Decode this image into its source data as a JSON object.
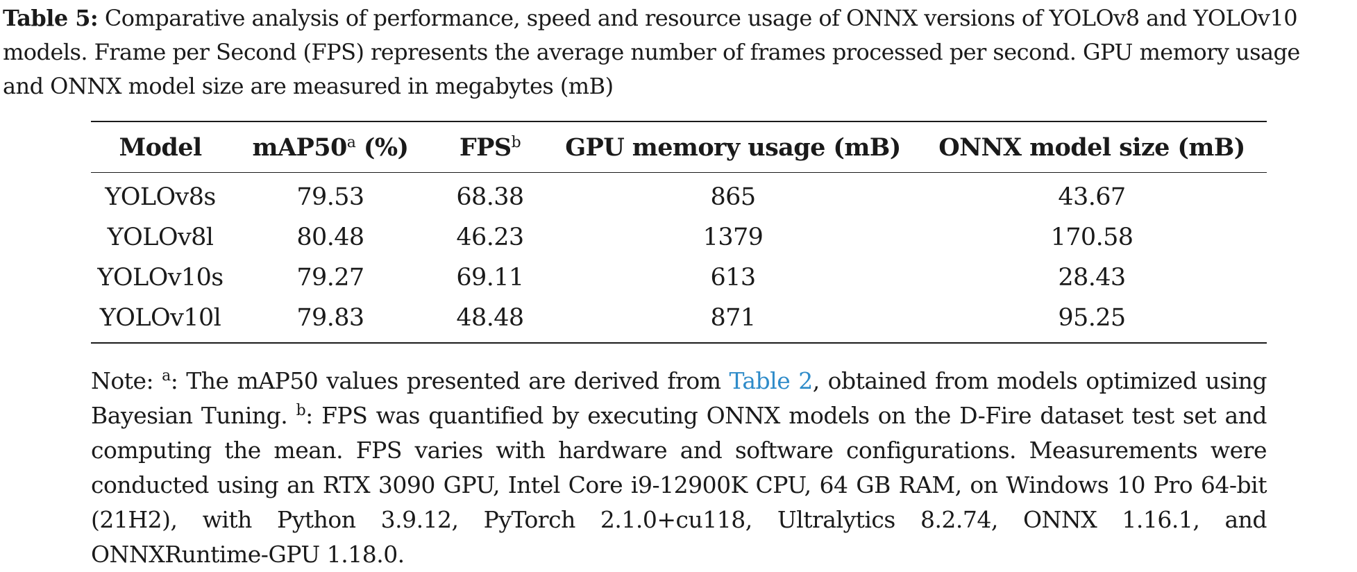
{
  "caption": {
    "label": "Table 5:",
    "text": "Comparative analysis of performance, speed and resource usage of ONNX versions of YOLOv8 and YOLOv10 models. Frame per Second (FPS) represents the average number of frames processed per second. GPU memory usage and ONNX model size are measured in megabytes (mB)",
    "line1": "Comparative analysis of performance, speed and resource usage of ONNX versions of YOLOv8 and YOLOv10",
    "line2": "models. Frame per Second (FPS) represents the average number of frames processed per second. GPU memory usage",
    "line3": "and ONNX model size are measured in megabytes (mB)"
  },
  "table": {
    "headers": {
      "model": "Model",
      "map50": "mAP50",
      "map50_sup": "a",
      "map50_unit": "(%)",
      "fps": "FPS",
      "fps_sup": "b",
      "gpu": "GPU memory usage (mB)",
      "onnx": "ONNX model size (mB)"
    },
    "rows": [
      {
        "model": "YOLOv8s",
        "map50": "79.53",
        "fps": "68.38",
        "gpu": "865",
        "onnx": "43.67"
      },
      {
        "model": "YOLOv8l",
        "map50": "80.48",
        "fps": "46.23",
        "gpu": "1379",
        "onnx": "170.58"
      },
      {
        "model": "YOLOv10s",
        "map50": "79.27",
        "fps": "69.11",
        "gpu": "613",
        "onnx": "28.43"
      },
      {
        "model": "YOLOv10l",
        "map50": "79.83",
        "fps": "48.48",
        "gpu": "871",
        "onnx": "95.25"
      }
    ]
  },
  "note": {
    "prefix": "Note: ",
    "sup_a": "a",
    "part1": ": The mAP50 values presented are derived from ",
    "link": "Table 2",
    "part2": ", obtained from models optimized using Bayesian Tuning. ",
    "sup_b": "b",
    "part3": ": FPS was quantified by executing ONNX models on the D-Fire dataset test set and computing the mean. FPS varies with hardware and software configurations. Measurements were conducted using an RTX 3090 GPU, Intel Core i9-12900K CPU, 64 GB RAM, on Windows 10 Pro 64-bit (21H2), with Python 3.9.12, PyTorch 2.1.0+cu118, Ultralytics 8.2.74, ONNX 1.16.1, and ONNXRuntime-GPU 1.18.0."
  },
  "colors": {
    "text": "#1a1a1a",
    "link": "#2e8bc9"
  }
}
